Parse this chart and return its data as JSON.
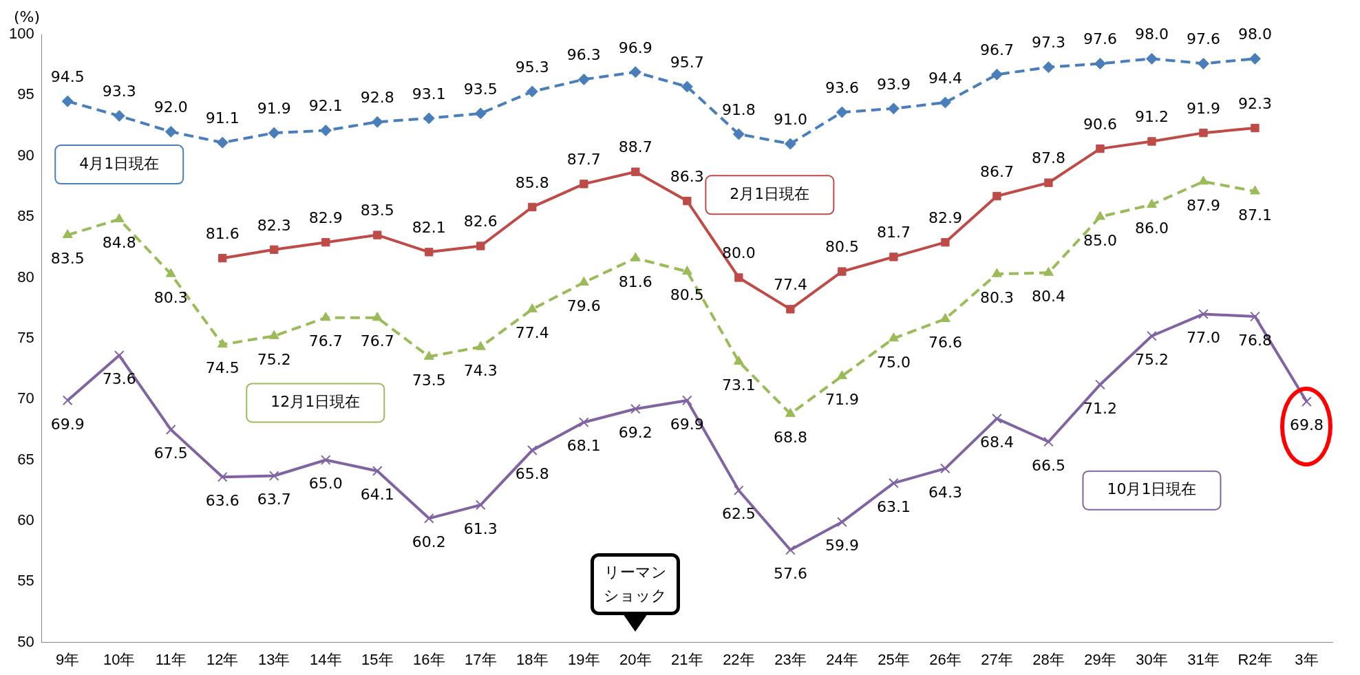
{
  "chart_data": {
    "type": "line",
    "ylabel": "(%)",
    "categories": [
      "9年",
      "10年",
      "11年",
      "12年",
      "13年",
      "14年",
      "15年",
      "16年",
      "17年",
      "18年",
      "19年",
      "20年",
      "21年",
      "22年",
      "23年",
      "24年",
      "25年",
      "26年",
      "27年",
      "28年",
      "29年",
      "30年",
      "31年",
      "R2年",
      "3年"
    ],
    "series": [
      {
        "name": "4月1日現在",
        "color": "#4a7ebb",
        "marker": "diamond",
        "line_style": "dashed",
        "values": [
          94.5,
          93.3,
          92.0,
          91.1,
          91.9,
          92.1,
          92.8,
          93.1,
          93.5,
          95.3,
          96.3,
          96.9,
          95.7,
          91.8,
          91.0,
          93.6,
          93.9,
          94.4,
          96.7,
          97.3,
          97.6,
          98.0,
          97.6,
          98.0,
          null
        ],
        "value_labels": [
          "94.5",
          "93.3",
          "92.0",
          "91.1",
          "91.9",
          "92.1",
          "92.8",
          "93.1",
          "93.5",
          "95.3",
          "96.3",
          "96.9",
          "95.7",
          "91.8",
          "91.0",
          "93.6",
          "93.9",
          "94.4",
          "96.7",
          "97.3",
          "97.6",
          "98.0",
          "97.6",
          "98.0",
          null
        ]
      },
      {
        "name": "2月1日現在",
        "color": "#be4b48",
        "marker": "square",
        "line_style": "solid",
        "values": [
          null,
          null,
          null,
          81.6,
          82.3,
          82.9,
          83.5,
          82.1,
          82.6,
          85.8,
          87.7,
          88.7,
          86.3,
          80.0,
          77.4,
          80.5,
          81.7,
          82.9,
          86.7,
          87.8,
          90.6,
          91.2,
          91.9,
          92.3,
          null
        ],
        "value_labels": [
          null,
          null,
          null,
          "81.6",
          "82.3",
          "82.9",
          "83.5",
          "82.1",
          "82.6",
          "85.8",
          "87.7",
          "88.7",
          "86.3",
          "80.0",
          "77.4",
          "80.5",
          "81.7",
          "82.9",
          "86.7",
          "87.8",
          "90.6",
          "91.2",
          "91.9",
          "92.3",
          null
        ]
      },
      {
        "name": "12月1日現在",
        "color": "#9bbb59",
        "marker": "triangle",
        "line_style": "dashed",
        "values": [
          83.5,
          84.8,
          80.3,
          74.5,
          75.2,
          76.7,
          76.7,
          73.5,
          74.3,
          77.4,
          79.6,
          81.6,
          80.5,
          73.1,
          68.8,
          71.9,
          75.0,
          76.6,
          80.3,
          80.4,
          85.0,
          86.0,
          87.9,
          87.1,
          null
        ],
        "value_labels": [
          "83.5",
          "84.8",
          "80.3",
          "74.5",
          "75.2",
          "76.7",
          "76.7",
          "73.5",
          "74.3",
          "77.4",
          "79.6",
          "81.6",
          "80.5",
          "73.1",
          "68.8",
          "71.9",
          "75.0",
          "76.6",
          "80.3",
          "80.4",
          "85.0",
          "86.0",
          "87.9",
          "87.1",
          null
        ]
      },
      {
        "name": "10月1日現在",
        "color": "#8064a2",
        "marker": "cross",
        "line_style": "solid",
        "values": [
          69.9,
          73.6,
          67.5,
          63.6,
          63.7,
          65.0,
          64.1,
          60.2,
          61.3,
          65.8,
          68.1,
          69.2,
          69.9,
          62.5,
          57.6,
          59.9,
          63.1,
          64.3,
          68.4,
          66.5,
          71.2,
          75.2,
          77.0,
          76.8,
          69.8
        ],
        "value_labels": [
          "69.9",
          "73.6",
          "67.5",
          "63.6",
          "63.7",
          "65.0",
          "64.1",
          "60.2",
          "61.3",
          "65.8",
          "68.1",
          "69.2",
          "69.9",
          "62.5",
          "57.6",
          "59.9",
          "63.1",
          "64.3",
          "68.4",
          "66.5",
          "71.2",
          "75.2",
          "77.0",
          "76.8",
          "69.8"
        ]
      }
    ],
    "ylim": [
      50,
      100
    ],
    "yticks": [
      50,
      55,
      60,
      65,
      70,
      75,
      80,
      85,
      90,
      95,
      100
    ],
    "grid": false,
    "legend": false,
    "annotations": [
      "リーマンショック"
    ]
  }
}
